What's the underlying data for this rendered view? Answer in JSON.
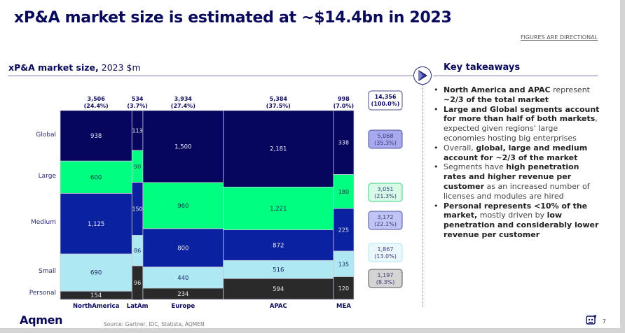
{
  "slide": {
    "title": "xP&A market size is estimated at ~$14.4bn in 2023",
    "disclaimer": "FIGURES ARE DIRECTIONAL",
    "chart_heading_bold": "xP&A market size,",
    "chart_heading_rest": " 2023 $m",
    "takeaways_heading": "Key takeaways",
    "logo": "Aqmen",
    "source": "Source: Gartner, IDC, Statista, AQMEN",
    "page_number": "7"
  },
  "takeaways": [
    [
      {
        "b": true,
        "t": "North America and APAC"
      },
      {
        "b": false,
        "t": " represent "
      },
      {
        "b": true,
        "t": "~2/3 of the total market"
      }
    ],
    [
      {
        "b": true,
        "t": "Large and Global segments account for more than half of both markets"
      },
      {
        "b": false,
        "t": ", expected given regions' large economies hosting big enterprises"
      }
    ],
    [
      {
        "b": false,
        "t": "Overall, "
      },
      {
        "b": true,
        "t": "global, large and medium account for ~2/3 of the market"
      }
    ],
    [
      {
        "b": false,
        "t": "Segments have "
      },
      {
        "b": true,
        "t": "high penetration rates and higher revenue per customer"
      },
      {
        "b": false,
        "t": " as an increased number of licenses and modules are hired"
      }
    ],
    [
      {
        "b": true,
        "t": "Personal represents <10% of the market,"
      },
      {
        "b": false,
        "t": " mostly driven by "
      },
      {
        "b": true,
        "t": "low penetration and considerably lower revenue per customer"
      }
    ]
  ],
  "colors": {
    "Global": "#05055e",
    "Large": "#00ff80",
    "Medium": "#0b22a0",
    "Small": "#aee8f2",
    "Personal": "#2a2a2a",
    "heading": "#0a0a5c"
  },
  "chart_data": {
    "type": "marimekko",
    "title": "xP&A market size, 2023 $m",
    "categories": [
      "NorthAmerica",
      "LatAm",
      "Europe",
      "APAC",
      "MEA"
    ],
    "category_totals": [
      "3,506",
      "534",
      "3,934",
      "5,384",
      "998"
    ],
    "category_shares": [
      "(24.4%)",
      "(3.7%)",
      "(27.4%)",
      "(37.5%)",
      "(7.0%)"
    ],
    "category_total_values": [
      3506,
      534,
      3934,
      5384,
      998
    ],
    "segments": [
      "Global",
      "Large",
      "Medium",
      "Small",
      "Personal"
    ],
    "series": [
      {
        "name": "Global",
        "values": [
          938,
          113,
          1500,
          2181,
          338
        ],
        "labels": [
          "938",
          "113",
          "1,500",
          "2,181",
          "338"
        ]
      },
      {
        "name": "Large",
        "values": [
          600,
          90,
          960,
          1221,
          180
        ],
        "labels": [
          "600",
          "90",
          "960",
          "1,221",
          "180"
        ]
      },
      {
        "name": "Medium",
        "values": [
          1125,
          150,
          800,
          872,
          225
        ],
        "labels": [
          "1,125",
          "150",
          "800",
          "872",
          "225"
        ]
      },
      {
        "name": "Small",
        "values": [
          690,
          86,
          440,
          516,
          135
        ],
        "labels": [
          "690",
          "86",
          "440",
          "516",
          "135"
        ]
      },
      {
        "name": "Personal",
        "values": [
          154,
          96,
          234,
          594,
          120
        ],
        "labels": [
          "154",
          "96",
          "234",
          "594",
          "120"
        ]
      }
    ],
    "grand_total": {
      "value": "14,356",
      "share": "(100.0%)"
    },
    "segment_totals": [
      {
        "name": "Global",
        "value": "5,068",
        "share": "(35.3%)"
      },
      {
        "name": "Large",
        "value": "3,051",
        "share": "(21.3%)"
      },
      {
        "name": "Medium",
        "value": "3,172",
        "share": "(22.1%)"
      },
      {
        "name": "Small",
        "value": "1,867",
        "share": "(13.0%)"
      },
      {
        "name": "Personal",
        "value": "1,197",
        "share": "(8.3%)"
      }
    ]
  }
}
